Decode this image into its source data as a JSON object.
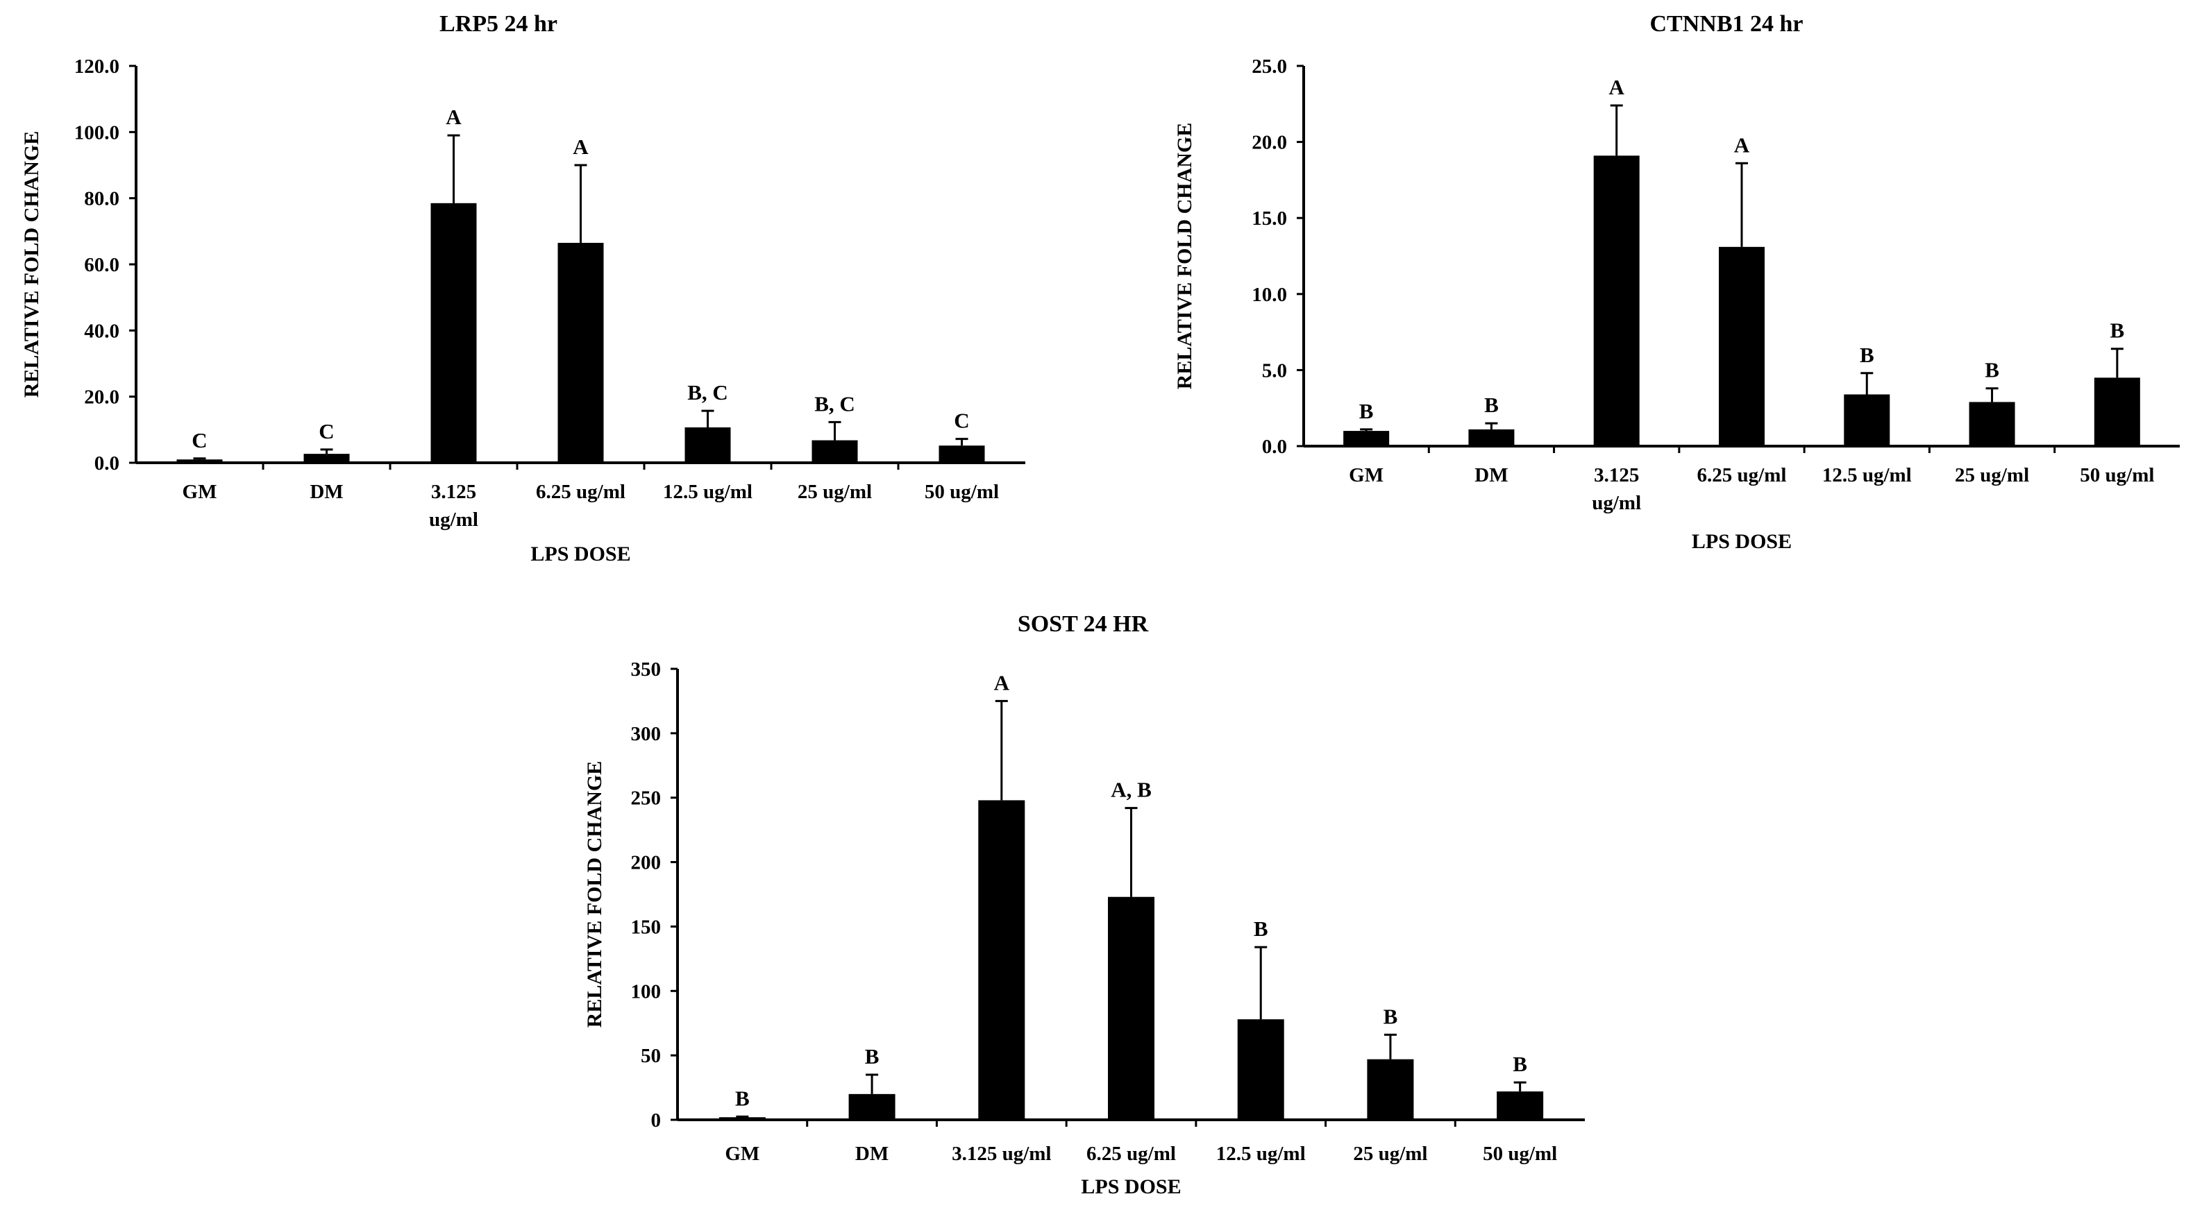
{
  "chart_data": [
    {
      "type": "bar",
      "title": "LRP5 24 hr",
      "xlabel": "LPS DOSE",
      "ylabel": "RELATIVE FOLD CHANGE",
      "ylim": [
        0,
        120
      ],
      "yticks": [
        "0.0",
        "20.0",
        "40.0",
        "60.0",
        "80.0",
        "100.0",
        "120.0"
      ],
      "categories": [
        [
          "GM"
        ],
        [
          "DM"
        ],
        [
          "3.125",
          "ug/ml"
        ],
        [
          "6.25 ug/ml"
        ],
        [
          "12.5 ug/ml"
        ],
        [
          "25 ug/ml"
        ],
        [
          "50 ug/ml"
        ]
      ],
      "values": [
        1.0,
        2.7,
        78.5,
        66.5,
        10.7,
        6.8,
        5.2
      ],
      "errors": [
        0.3,
        1.3,
        20.5,
        23.5,
        5.0,
        5.5,
        2.0
      ],
      "sig_labels": [
        "C",
        "C",
        "A",
        "A",
        "B, C",
        "B, C",
        "C"
      ],
      "grid": false,
      "legend": "none"
    },
    {
      "type": "bar",
      "title": "CTNNB1 24 hr",
      "xlabel": "LPS DOSE",
      "ylabel": "RELATIVE FOLD CHANGE",
      "ylim": [
        0,
        25
      ],
      "yticks": [
        "0.0",
        "5.0",
        "10.0",
        "15.0",
        "20.0",
        "25.0"
      ],
      "categories": [
        [
          "GM"
        ],
        [
          "DM"
        ],
        [
          "3.125",
          "ug/ml"
        ],
        [
          "6.25 ug/ml"
        ],
        [
          "12.5 ug/ml"
        ],
        [
          "25 ug/ml"
        ],
        [
          "50 ug/ml"
        ]
      ],
      "values": [
        1.0,
        1.1,
        19.1,
        13.1,
        3.4,
        2.9,
        4.5
      ],
      "errors": [
        0.1,
        0.4,
        3.3,
        5.5,
        1.4,
        0.9,
        1.9
      ],
      "sig_labels": [
        "B",
        "B",
        "A",
        "A",
        "B",
        "B",
        "B"
      ],
      "grid": false,
      "legend": "none"
    },
    {
      "type": "bar",
      "title": "SOST 24 HR",
      "xlabel": "LPS DOSE",
      "ylabel": "RELATIVE FOLD CHANGE",
      "ylim": [
        0,
        350
      ],
      "yticks": [
        "0",
        "50",
        "100",
        "150",
        "200",
        "250",
        "300",
        "350"
      ],
      "categories": [
        [
          "GM"
        ],
        [
          "DM"
        ],
        [
          "3.125 ug/ml"
        ],
        [
          "6.25 ug/ml"
        ],
        [
          "12.5 ug/ml"
        ],
        [
          "25 ug/ml"
        ],
        [
          "50 ug/ml"
        ]
      ],
      "values": [
        2,
        20,
        248,
        173,
        78,
        47,
        22
      ],
      "errors": [
        0.5,
        15,
        77,
        69,
        56,
        19,
        7
      ],
      "sig_labels": [
        "B",
        "B",
        "A",
        "A, B",
        "B",
        "B",
        "B"
      ],
      "grid": false,
      "legend": "none"
    }
  ]
}
